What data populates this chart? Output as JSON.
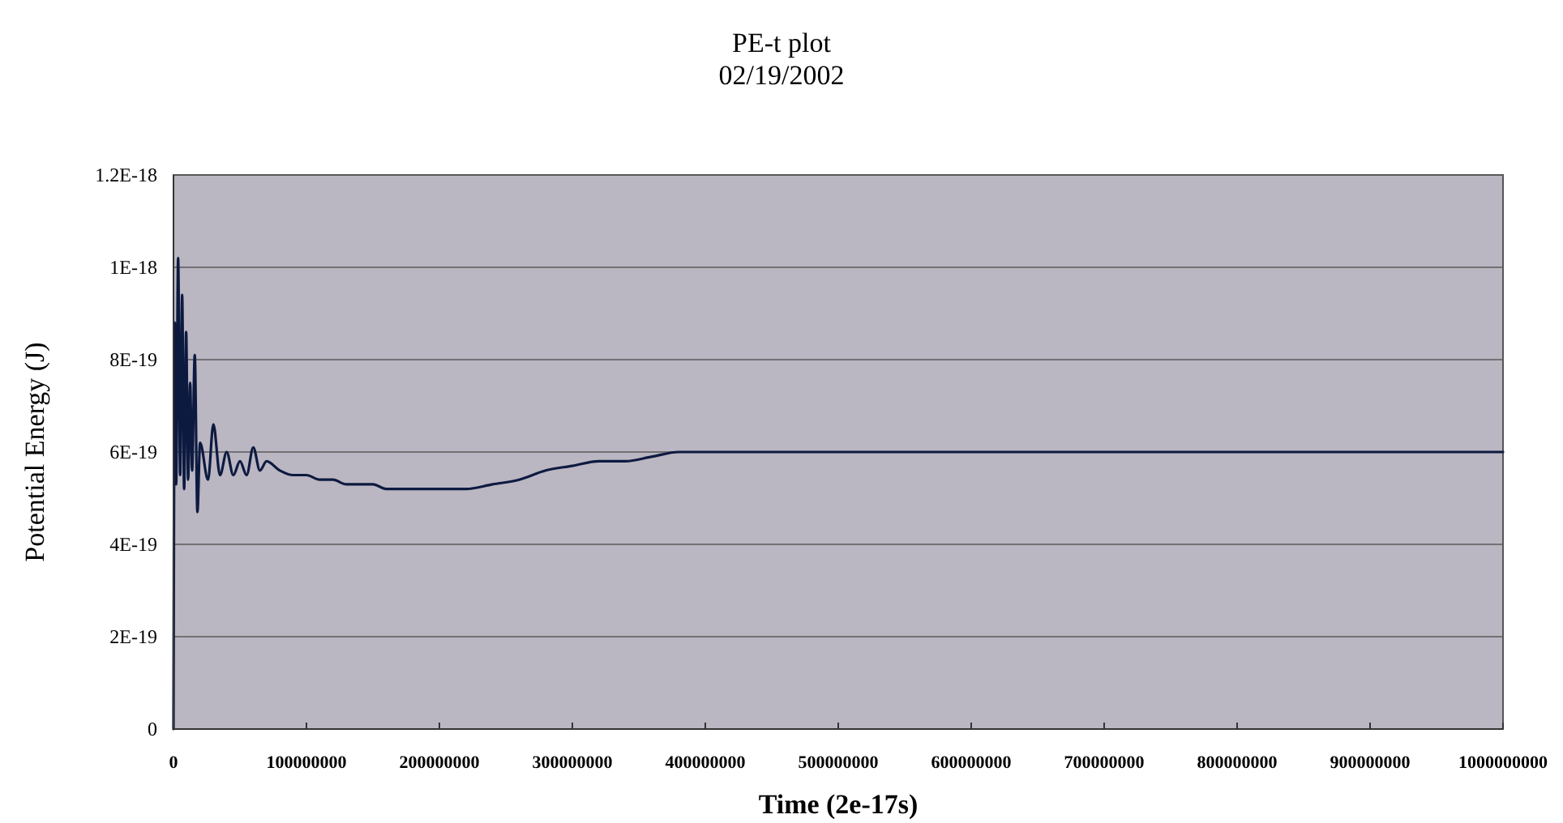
{
  "chart_data": {
    "type": "line",
    "title": "PE-t plot",
    "subtitle": "02/19/2002",
    "xlabel": "Time (2e-17s)",
    "ylabel": "Potential Energy (J)",
    "xlim": [
      0,
      1000000000
    ],
    "xticks": [
      0,
      100000000,
      200000000,
      300000000,
      400000000,
      500000000,
      600000000,
      700000000,
      800000000,
      900000000,
      1000000000
    ],
    "ylim": [
      0,
      1.2e-18
    ],
    "yticks": [
      0,
      {
        "value": 2e-19,
        "label": "2E-19"
      },
      {
        "value": 4e-19,
        "label": "4E-19"
      },
      {
        "value": 6e-19,
        "label": "6E-19"
      },
      {
        "value": 8e-19,
        "label": "8E-19"
      },
      {
        "value": 1e-18,
        "label": "1E-18"
      },
      {
        "value": 1.2e-18,
        "label": "1.2E-18"
      }
    ],
    "grid": "y",
    "marker": "none",
    "line_style": "solid",
    "x": [
      0,
      1000000,
      2000000,
      3500000,
      5000000,
      6500000,
      8000000,
      9500000,
      11000000,
      12500000,
      14000000,
      16000000,
      18000000,
      20000000,
      26000000,
      30000000,
      35000000,
      40000000,
      45000000,
      50000000,
      55000000,
      60000000,
      65000000,
      70000000,
      80000000,
      90000000,
      100000000,
      110000000,
      120000000,
      130000000,
      140000000,
      150000000,
      160000000,
      170000000,
      180000000,
      200000000,
      220000000,
      240000000,
      260000000,
      280000000,
      300000000,
      320000000,
      340000000,
      360000000,
      380000000,
      400000000,
      500000000,
      600000000,
      700000000,
      800000000,
      900000000,
      1000000000
    ],
    "series": [
      {
        "color": "#0d1a40",
        "values": [
          0,
          8.8e-19,
          5.3e-19,
          1.02e-18,
          5.5e-19,
          9.4e-19,
          5.2e-19,
          8.6e-19,
          5.4e-19,
          7.5e-19,
          5.6e-19,
          8.1e-19,
          4.7e-19,
          6.2e-19,
          5.4e-19,
          6.6e-19,
          5.5e-19,
          6e-19,
          5.5e-19,
          5.8e-19,
          5.5e-19,
          6.1e-19,
          5.6e-19,
          5.8e-19,
          5.6e-19,
          5.5e-19,
          5.5e-19,
          5.4e-19,
          5.4e-19,
          5.3e-19,
          5.3e-19,
          5.3e-19,
          5.2e-19,
          5.2e-19,
          5.2e-19,
          5.2e-19,
          5.2e-19,
          5.3e-19,
          5.4e-19,
          5.6e-19,
          5.7e-19,
          5.8e-19,
          5.8e-19,
          5.9e-19,
          6e-19,
          6e-19,
          6e-19,
          6e-19,
          6e-19,
          6e-19,
          6e-19,
          6e-19
        ]
      }
    ]
  }
}
